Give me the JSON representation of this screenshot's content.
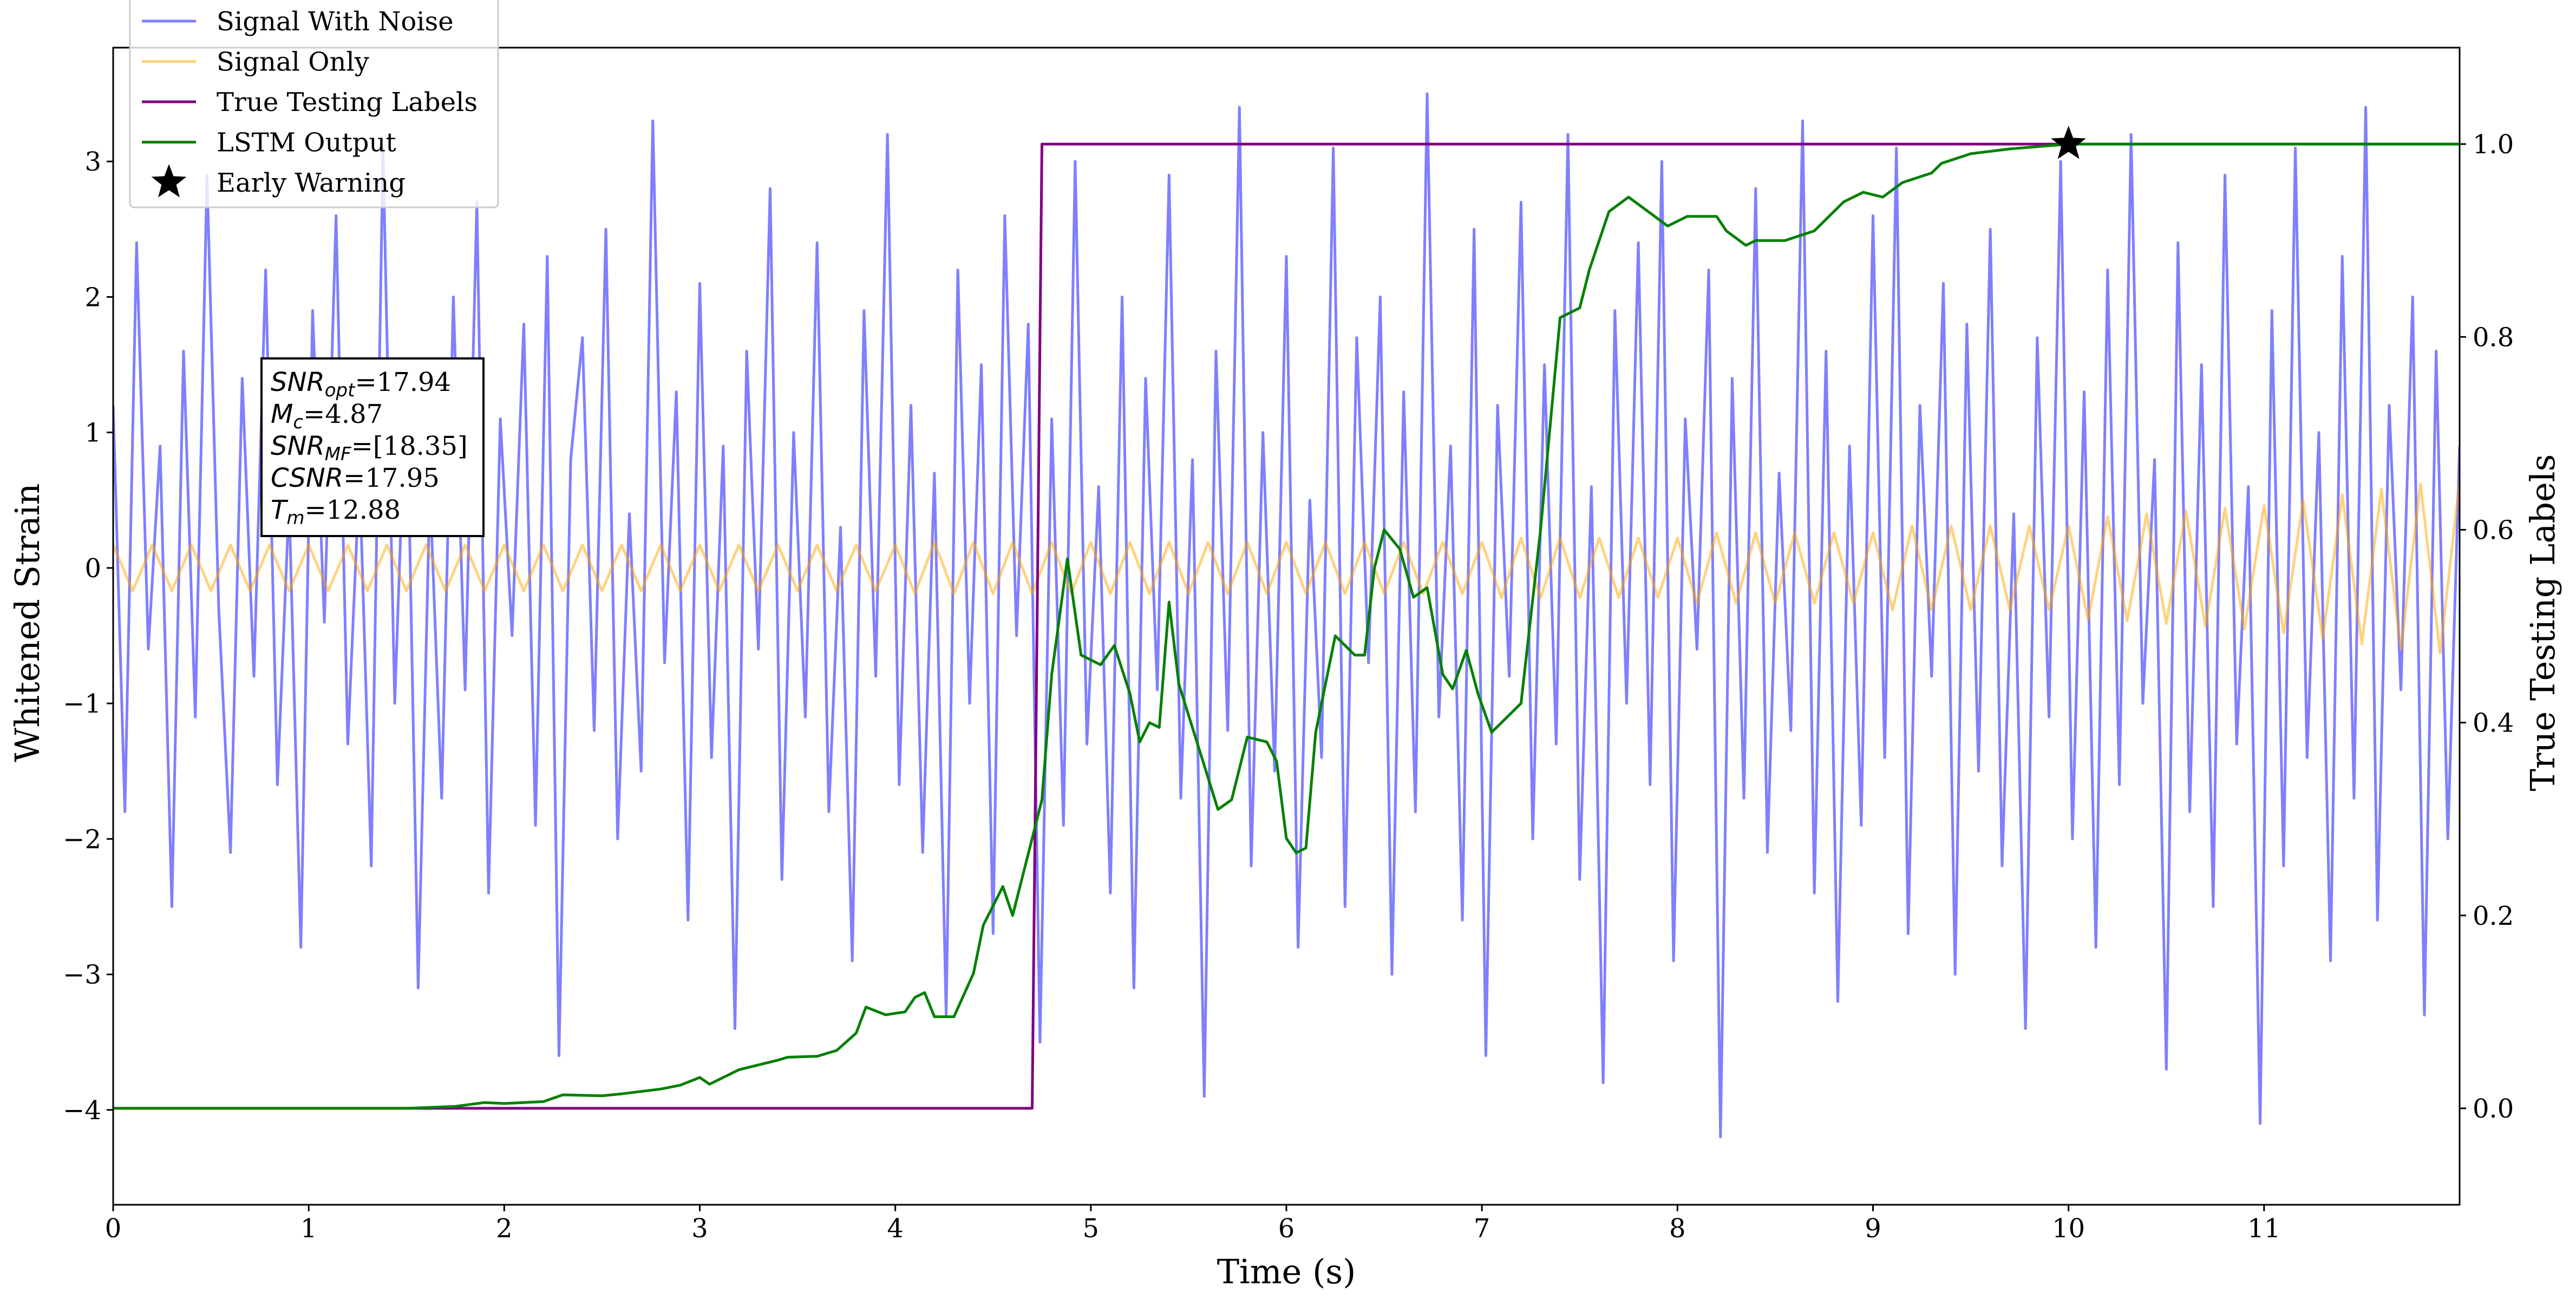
{
  "chart_data": {
    "type": "line",
    "xlabel": "Time (s)",
    "ylabel": "Whitened Strain",
    "y2label": "True Testing Labels",
    "xlim": [
      0,
      12.0
    ],
    "ylim": [
      -4.7,
      3.84
    ],
    "y2lim": [
      -0.1,
      1.1
    ],
    "xticks": [
      0,
      1,
      2,
      3,
      4,
      5,
      6,
      7,
      8,
      9,
      10,
      11
    ],
    "yticks": [
      {
        "value": -4,
        "label": "−4"
      },
      {
        "value": -3,
        "label": "−3"
      },
      {
        "value": -2,
        "label": "−2"
      },
      {
        "value": -1,
        "label": "−1"
      },
      0,
      1,
      2,
      3
    ],
    "y2ticks": [
      {
        "value": 0,
        "label": "0.0"
      },
      0.2,
      0.4,
      0.6,
      0.8,
      {
        "value": 1,
        "label": "1.0"
      }
    ],
    "legend": "upper left",
    "series": [
      {
        "name": "Signal With Noise",
        "color": "#0000ff",
        "opacity": 0.5,
        "x": [
          0,
          0.06,
          0.12,
          0.18,
          0.24,
          0.3,
          0.36,
          0.42,
          0.48,
          0.54,
          0.6,
          0.66,
          0.72,
          0.78,
          0.84,
          0.9,
          0.96,
          1.02,
          1.08,
          1.14,
          1.2,
          1.26,
          1.32,
          1.38,
          1.44,
          1.5,
          1.56,
          1.62,
          1.68,
          1.74,
          1.8,
          1.86,
          1.92,
          1.98,
          2.04,
          2.1,
          2.16,
          2.22,
          2.28,
          2.34,
          2.4,
          2.46,
          2.52,
          2.58,
          2.64,
          2.7,
          2.76,
          2.82,
          2.88,
          2.94,
          3,
          3.06,
          3.12,
          3.18,
          3.24,
          3.3,
          3.36,
          3.42,
          3.48,
          3.54,
          3.6,
          3.66,
          3.72,
          3.78,
          3.84,
          3.9,
          3.96,
          4.02,
          4.08,
          4.14,
          4.2,
          4.26,
          4.32,
          4.38,
          4.44,
          4.5,
          4.56,
          4.62,
          4.68,
          4.74,
          4.8,
          4.86,
          4.92,
          4.98,
          5.04,
          5.1,
          5.16,
          5.22,
          5.28,
          5.34,
          5.4,
          5.46,
          5.52,
          5.58,
          5.64,
          5.7,
          5.76,
          5.82,
          5.88,
          5.94,
          6,
          6.06,
          6.12,
          6.18,
          6.24,
          6.3,
          6.36,
          6.42,
          6.48,
          6.54,
          6.6,
          6.66,
          6.72,
          6.78,
          6.84,
          6.9,
          6.96,
          7.02,
          7.08,
          7.14,
          7.2,
          7.26,
          7.32,
          7.38,
          7.44,
          7.5,
          7.56,
          7.62,
          7.68,
          7.74,
          7.8,
          7.86,
          7.92,
          7.98,
          8.04,
          8.1,
          8.16,
          8.22,
          8.28,
          8.34,
          8.4,
          8.46,
          8.52,
          8.58,
          8.64,
          8.7,
          8.76,
          8.82,
          8.88,
          8.94,
          9,
          9.06,
          9.12,
          9.18,
          9.24,
          9.3,
          9.36,
          9.42,
          9.48,
          9.54,
          9.6,
          9.66,
          9.72,
          9.78,
          9.84,
          9.9,
          9.96,
          10.02,
          10.08,
          10.14,
          10.2,
          10.26,
          10.32,
          10.38,
          10.44,
          10.5,
          10.56,
          10.62,
          10.68,
          10.74,
          10.8,
          10.86,
          10.92,
          10.98,
          11.04,
          11.1,
          11.16,
          11.22,
          11.28,
          11.34,
          11.4,
          11.46,
          11.52,
          11.58,
          11.64,
          11.7,
          11.76,
          11.82,
          11.88,
          11.94,
          12
        ],
        "values": [
          1.2,
          -1.8,
          2.4,
          -0.6,
          0.9,
          -2.5,
          1.6,
          -1.1,
          2.9,
          -0.3,
          -2.1,
          1.4,
          -0.8,
          2.2,
          -1.6,
          0.5,
          -2.8,
          1.9,
          -0.4,
          2.6,
          -1.3,
          0.7,
          -2.2,
          3.1,
          -1.0,
          1.5,
          -3.1,
          0.6,
          -1.7,
          2.0,
          -0.9,
          2.7,
          -2.4,
          1.1,
          -0.5,
          1.8,
          -1.9,
          2.3,
          -3.6,
          0.8,
          1.7,
          -1.2,
          2.5,
          -2.0,
          0.4,
          -1.5,
          3.3,
          -0.7,
          1.3,
          -2.6,
          2.1,
          -1.4,
          0.9,
          -3.4,
          1.6,
          -0.6,
          2.8,
          -2.3,
          1.0,
          -1.1,
          2.4,
          -1.8,
          0.3,
          -2.9,
          1.9,
          -0.8,
          3.2,
          -1.6,
          1.2,
          -2.1,
          0.7,
          -3.3,
          2.2,
          -1.0,
          1.5,
          -2.7,
          2.6,
          -0.5,
          1.8,
          -3.5,
          1.1,
          -1.9,
          3.0,
          -1.3,
          0.6,
          -2.4,
          2.0,
          -3.1,
          1.4,
          -0.9,
          2.9,
          -1.7,
          0.8,
          -3.9,
          1.6,
          -1.2,
          3.4,
          -2.2,
          1.0,
          -1.5,
          2.3,
          -2.8,
          0.5,
          -1.4,
          3.1,
          -2.5,
          1.7,
          -0.7,
          2.0,
          -3.0,
          1.3,
          -1.8,
          3.5,
          -1.1,
          0.9,
          -2.6,
          2.5,
          -3.6,
          1.2,
          -0.8,
          2.7,
          -2.0,
          1.5,
          -1.3,
          3.2,
          -2.3,
          0.6,
          -3.8,
          1.9,
          -1.0,
          2.4,
          -1.6,
          3.0,
          -2.9,
          1.1,
          -0.6,
          2.2,
          -4.2,
          1.4,
          -1.7,
          2.8,
          -2.1,
          0.7,
          -1.2,
          3.3,
          -2.4,
          1.6,
          -3.2,
          0.9,
          -1.9,
          2.6,
          -1.4,
          3.1,
          -2.7,
          1.2,
          -0.8,
          2.1,
          -3.0,
          1.8,
          -1.5,
          2.5,
          -2.2,
          0.4,
          -3.4,
          1.7,
          -1.1,
          3.0,
          -2.0,
          1.3,
          -2.8,
          2.2,
          -1.6,
          3.2,
          -1.0,
          0.8,
          -3.7,
          2.4,
          -1.8,
          1.5,
          -2.5,
          2.9,
          -1.3,
          0.6,
          -4.1,
          1.9,
          -2.2,
          3.1,
          -1.4,
          1.0,
          -2.9,
          2.3,
          -1.7,
          3.4,
          -2.6,
          1.2,
          -0.9,
          2.0,
          -3.3,
          1.6,
          -2.0,
          0.9
        ]
      },
      {
        "name": "Signal Only",
        "color": "#ffa500",
        "opacity": 0.5,
        "x": [
          0,
          0.1,
          0.2,
          0.3,
          0.4,
          0.5,
          0.6,
          0.7,
          0.8,
          0.9,
          1,
          1.1,
          1.2,
          1.3,
          1.4,
          1.5,
          1.6,
          1.7,
          1.8,
          1.9,
          2,
          2.1,
          2.2,
          2.3,
          2.4,
          2.5,
          2.6,
          2.7,
          2.8,
          2.9,
          3,
          3.1,
          3.2,
          3.3,
          3.4,
          3.5,
          3.6,
          3.7,
          3.8,
          3.9,
          4,
          4.1,
          4.2,
          4.3,
          4.4,
          4.5,
          4.6,
          4.7,
          4.8,
          4.9,
          5,
          5.1,
          5.2,
          5.3,
          5.4,
          5.5,
          5.6,
          5.7,
          5.8,
          5.9,
          6,
          6.1,
          6.2,
          6.3,
          6.4,
          6.5,
          6.6,
          6.7,
          6.8,
          6.9,
          7,
          7.1,
          7.2,
          7.3,
          7.4,
          7.5,
          7.6,
          7.7,
          7.8,
          7.9,
          8,
          8.1,
          8.2,
          8.3,
          8.4,
          8.5,
          8.6,
          8.7,
          8.8,
          8.9,
          9,
          9.1,
          9.2,
          9.3,
          9.4,
          9.5,
          9.6,
          9.7,
          9.8,
          9.9,
          10,
          10.1,
          10.2,
          10.3,
          10.4,
          10.5,
          10.6,
          10.7,
          10.8,
          10.9,
          11,
          11.1,
          11.2,
          11.3,
          11.4,
          11.5,
          11.6,
          11.7,
          11.8,
          11.9,
          12
        ],
        "values": [
          0.17,
          -0.17,
          0.17,
          -0.17,
          0.17,
          -0.17,
          0.17,
          -0.17,
          0.17,
          -0.17,
          0.17,
          -0.17,
          0.17,
          -0.17,
          0.17,
          -0.17,
          0.17,
          -0.17,
          0.17,
          -0.17,
          0.17,
          -0.17,
          0.17,
          -0.17,
          0.17,
          -0.17,
          0.17,
          -0.17,
          0.17,
          -0.17,
          0.17,
          -0.17,
          0.17,
          -0.17,
          0.17,
          -0.17,
          0.17,
          -0.17,
          0.17,
          -0.17,
          0.17,
          -0.19,
          0.19,
          -0.19,
          0.19,
          -0.19,
          0.19,
          -0.19,
          0.19,
          -0.19,
          0.19,
          -0.19,
          0.19,
          -0.19,
          0.19,
          -0.19,
          0.19,
          -0.19,
          0.19,
          -0.19,
          0.19,
          -0.19,
          0.19,
          -0.19,
          0.19,
          -0.19,
          0.19,
          -0.19,
          0.19,
          -0.19,
          0.19,
          -0.22,
          0.22,
          -0.22,
          0.22,
          -0.22,
          0.22,
          -0.22,
          0.22,
          -0.22,
          0.22,
          -0.26,
          0.26,
          -0.26,
          0.26,
          -0.26,
          0.26,
          -0.26,
          0.26,
          -0.26,
          0.26,
          -0.31,
          0.31,
          -0.31,
          0.31,
          -0.31,
          0.31,
          -0.31,
          0.31,
          -0.31,
          0.31,
          -0.38,
          0.38,
          -0.39,
          0.4,
          -0.41,
          0.42,
          -0.43,
          0.44,
          -0.45,
          0.46,
          -0.48,
          0.5,
          -0.52,
          0.54,
          -0.56,
          0.58,
          -0.6,
          0.62,
          -0.63,
          0.64
        ]
      },
      {
        "name": "True Testing Labels",
        "color": "#800080",
        "axis": "y2",
        "x": [
          0,
          4.7,
          4.75,
          12
        ],
        "values": [
          0,
          0,
          1,
          1
        ]
      },
      {
        "name": "LSTM Output",
        "color": "#008000",
        "axis": "y2",
        "x": [
          0,
          1,
          1.5,
          1.75,
          1.9,
          2,
          2.2,
          2.3,
          2.5,
          2.6,
          2.8,
          2.9,
          3,
          3.05,
          3.2,
          3.3,
          3.4,
          3.45,
          3.6,
          3.7,
          3.8,
          3.85,
          3.95,
          4.05,
          4.1,
          4.15,
          4.2,
          4.3,
          4.4,
          4.45,
          4.55,
          4.6,
          4.7,
          4.75,
          4.8,
          4.88,
          4.95,
          5.05,
          5.12,
          5.2,
          5.25,
          5.3,
          5.35,
          5.4,
          5.45,
          5.55,
          5.65,
          5.72,
          5.8,
          5.9,
          5.95,
          6,
          6.05,
          6.1,
          6.15,
          6.25,
          6.35,
          6.4,
          6.45,
          6.5,
          6.58,
          6.65,
          6.72,
          6.8,
          6.85,
          6.92,
          6.98,
          7.05,
          7.1,
          7.2,
          7.3,
          7.4,
          7.5,
          7.55,
          7.65,
          7.75,
          7.85,
          7.95,
          8.05,
          8.2,
          8.25,
          8.35,
          8.4,
          8.55,
          8.7,
          8.85,
          8.95,
          9.05,
          9.15,
          9.3,
          9.35,
          9.5,
          9.7,
          10,
          12
        ],
        "values": [
          0,
          0,
          0,
          0.002,
          0.006,
          0.005,
          0.007,
          0.014,
          0.013,
          0.015,
          0.02,
          0.024,
          0.032,
          0.025,
          0.04,
          0.045,
          0.05,
          0.053,
          0.054,
          0.06,
          0.078,
          0.105,
          0.097,
          0.1,
          0.115,
          0.12,
          0.095,
          0.095,
          0.14,
          0.19,
          0.23,
          0.2,
          0.28,
          0.32,
          0.45,
          0.57,
          0.47,
          0.46,
          0.48,
          0.43,
          0.38,
          0.4,
          0.395,
          0.525,
          0.44,
          0.375,
          0.31,
          0.32,
          0.385,
          0.38,
          0.36,
          0.28,
          0.265,
          0.27,
          0.39,
          0.49,
          0.47,
          0.47,
          0.56,
          0.6,
          0.58,
          0.53,
          0.54,
          0.45,
          0.435,
          0.475,
          0.43,
          0.39,
          0.4,
          0.42,
          0.6,
          0.82,
          0.83,
          0.87,
          0.93,
          0.945,
          0.93,
          0.915,
          0.925,
          0.925,
          0.91,
          0.895,
          0.9,
          0.9,
          0.91,
          0.94,
          0.95,
          0.945,
          0.96,
          0.97,
          0.98,
          0.99,
          0.995,
          1,
          1
        ]
      }
    ],
    "early_warning": {
      "name": "Early Warning",
      "x": 10,
      "y": 1,
      "axis": "y2",
      "color": "#000000"
    },
    "text_box": [
      {
        "symbol": "SNR",
        "sub": "opt",
        "text": "=17.94"
      },
      {
        "symbol": "M",
        "sub": "c",
        "text": "=4.87"
      },
      {
        "symbol": "SNR",
        "sub": "MF",
        "text": "=[18.35]"
      },
      {
        "symbol": "CSNR",
        "text": "=17.95"
      },
      {
        "symbol": "T",
        "sub": "m",
        "text": "=12.88"
      }
    ]
  }
}
